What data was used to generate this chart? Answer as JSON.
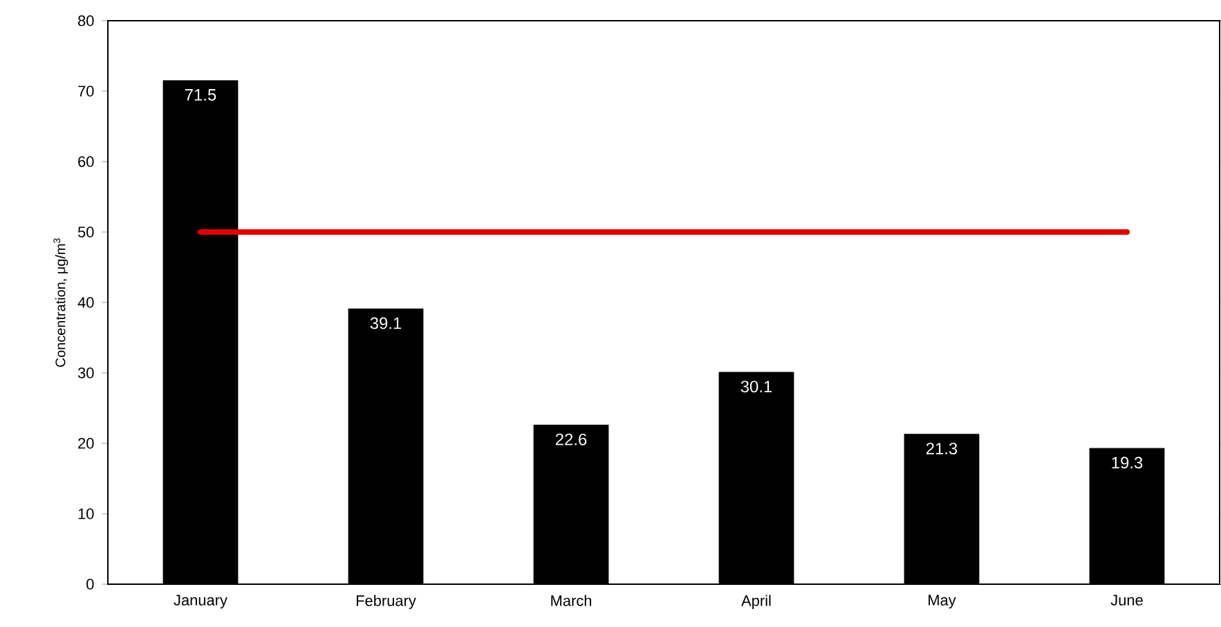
{
  "chart_data": {
    "type": "bar",
    "ylabel": "Concentration, μg/m$^{3}$",
    "categories": [
      "January",
      "February",
      "March",
      "April",
      "May",
      "June"
    ],
    "series": [
      {
        "color": "#000000",
        "values": [
          71.5,
          39.1,
          22.6,
          30.1,
          21.3,
          19.3
        ],
        "value_labels": [
          "71.5",
          "39.1",
          "22.6",
          "30.1",
          "21.3",
          "19.3"
        ]
      },
      {
        "type": "line",
        "color": "#e00000",
        "values": [
          50,
          50,
          50,
          50,
          50,
          50
        ]
      }
    ],
    "ylim": [
      0,
      80
    ],
    "yticks": [
      0,
      10,
      20,
      30,
      40,
      50,
      60,
      70,
      80
    ],
    "grid": false
  }
}
